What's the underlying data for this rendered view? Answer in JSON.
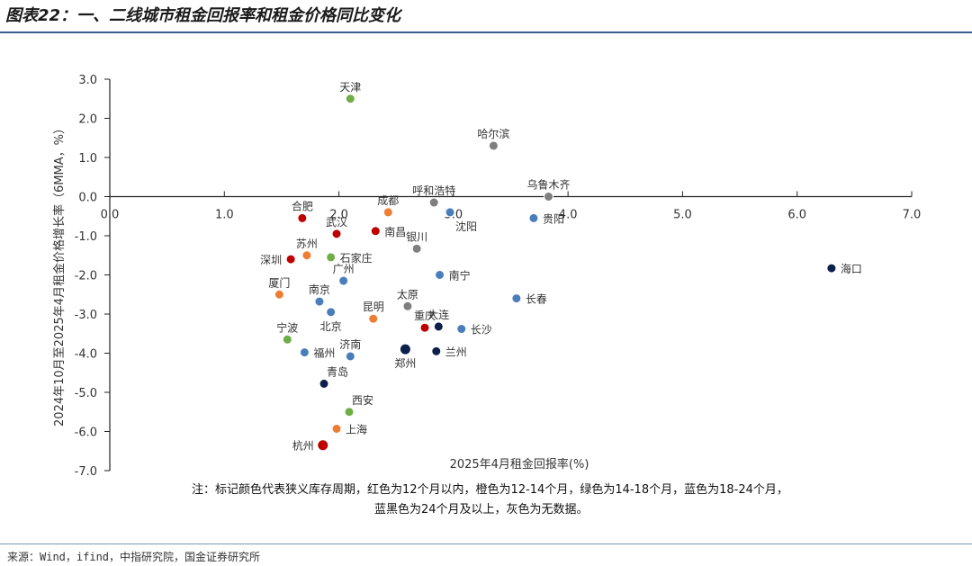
{
  "header": {
    "title": "图表22：一、二线城市租金回报率和租金价格同比变化"
  },
  "footer": {
    "source": "来源：Wind，ifind，中指研究院，国金证券研究所"
  },
  "chart_data": {
    "type": "scatter",
    "xlabel": "2025年4月租金回报率(%)",
    "ylabel": "2024年10月至2025年4月租金价格增长率（6MMA，%）",
    "xlim": [
      0.0,
      7.0
    ],
    "ylim": [
      -7.0,
      3.0
    ],
    "xticks": [
      "0.0",
      "1.0",
      "2.0",
      "3.0",
      "4.0",
      "5.0",
      "6.0",
      "7.0"
    ],
    "yticks": [
      "3.0",
      "2.0",
      "1.0",
      "0.0",
      "-1.0",
      "-2.0",
      "-3.0",
      "-4.0",
      "-5.0",
      "-6.0",
      "-7.0"
    ],
    "note_line1": "注：标记颜色代表狭义库存周期，红色为12个月以内，橙色为12-14个月，绿色为14-18个月，蓝色为18-24个月，",
    "note_line2": "蓝黑色为24个月及以上，灰色为无数据。",
    "colors": {
      "red": "#c00000",
      "orange": "#ed7d31",
      "green": "#70ad47",
      "blue": "#4a7ebb",
      "navy": "#0d1f4a",
      "gray": "#7f7f7f"
    },
    "points": [
      {
        "name": "天津",
        "x": 2.1,
        "y": 2.5,
        "group": "green",
        "label_pos": "above"
      },
      {
        "name": "哈尔滨",
        "x": 3.35,
        "y": 1.3,
        "group": "gray",
        "label_pos": "above"
      },
      {
        "name": "乌鲁木齐",
        "x": 3.83,
        "y": 0.0,
        "group": "gray",
        "label_pos": "above"
      },
      {
        "name": "呼和浩特",
        "x": 2.83,
        "y": -0.15,
        "group": "gray",
        "label_pos": "above"
      },
      {
        "name": "合肥",
        "x": 1.68,
        "y": -0.55,
        "group": "red",
        "label_pos": "above"
      },
      {
        "name": "成都",
        "x": 2.43,
        "y": -0.4,
        "group": "orange",
        "label_pos": "above"
      },
      {
        "name": "贵阳",
        "x": 3.7,
        "y": -0.55,
        "group": "blue",
        "label_pos": "right"
      },
      {
        "name": "沈阳",
        "x": 2.97,
        "y": -0.4,
        "group": "blue",
        "label_pos": "below-right"
      },
      {
        "name": "武汉",
        "x": 1.98,
        "y": -0.95,
        "group": "red",
        "label_pos": "above"
      },
      {
        "name": "南昌",
        "x": 2.32,
        "y": -0.88,
        "group": "red",
        "label_pos": "right"
      },
      {
        "name": "银川",
        "x": 2.68,
        "y": -1.33,
        "group": "gray",
        "label_pos": "above"
      },
      {
        "name": "苏州",
        "x": 1.72,
        "y": -1.5,
        "group": "orange",
        "label_pos": "above"
      },
      {
        "name": "深圳",
        "x": 1.58,
        "y": -1.6,
        "group": "red",
        "label_pos": "left"
      },
      {
        "name": "石家庄",
        "x": 1.93,
        "y": -1.55,
        "group": "green",
        "label_pos": "right"
      },
      {
        "name": "广州",
        "x": 2.04,
        "y": -2.15,
        "group": "blue",
        "label_pos": "above"
      },
      {
        "name": "南宁",
        "x": 2.88,
        "y": -2.0,
        "group": "blue",
        "label_pos": "right"
      },
      {
        "name": "厦门",
        "x": 1.48,
        "y": -2.5,
        "group": "orange",
        "label_pos": "above"
      },
      {
        "name": "南京",
        "x": 1.83,
        "y": -2.68,
        "group": "blue",
        "label_pos": "above"
      },
      {
        "name": "太原",
        "x": 2.6,
        "y": -2.8,
        "group": "gray",
        "label_pos": "above"
      },
      {
        "name": "长春",
        "x": 3.55,
        "y": -2.6,
        "group": "blue",
        "label_pos": "right"
      },
      {
        "name": "北京",
        "x": 1.93,
        "y": -2.95,
        "group": "blue",
        "label_pos": "below"
      },
      {
        "name": "昆明",
        "x": 2.3,
        "y": -3.12,
        "group": "orange",
        "label_pos": "above"
      },
      {
        "name": "重庆",
        "x": 2.75,
        "y": -3.35,
        "group": "red",
        "label_pos": "above"
      },
      {
        "name": "大连",
        "x": 2.87,
        "y": -3.32,
        "group": "navy",
        "label_pos": "above"
      },
      {
        "name": "长沙",
        "x": 3.07,
        "y": -3.38,
        "group": "blue",
        "label_pos": "right"
      },
      {
        "name": "宁波",
        "x": 1.55,
        "y": -3.65,
        "group": "green",
        "label_pos": "above"
      },
      {
        "name": "福州",
        "x": 1.7,
        "y": -3.98,
        "group": "blue",
        "label_pos": "right"
      },
      {
        "name": "济南",
        "x": 2.1,
        "y": -4.08,
        "group": "blue",
        "label_pos": "above"
      },
      {
        "name": "郑州",
        "x": 2.58,
        "y": -3.9,
        "group": "navy",
        "label_pos": "below"
      },
      {
        "name": "兰州",
        "x": 2.85,
        "y": -3.95,
        "group": "navy",
        "label_pos": "right"
      },
      {
        "name": "海口",
        "x": 6.3,
        "y": -1.83,
        "group": "navy",
        "label_pos": "right"
      },
      {
        "name": "青岛",
        "x": 1.87,
        "y": -4.78,
        "group": "navy",
        "label_pos": "above-right"
      },
      {
        "name": "西安",
        "x": 2.09,
        "y": -5.5,
        "group": "green",
        "label_pos": "above-right"
      },
      {
        "name": "上海",
        "x": 1.98,
        "y": -5.93,
        "group": "orange",
        "label_pos": "right"
      },
      {
        "name": "杭州",
        "x": 1.86,
        "y": -6.35,
        "group": "red",
        "label_pos": "left"
      }
    ]
  }
}
